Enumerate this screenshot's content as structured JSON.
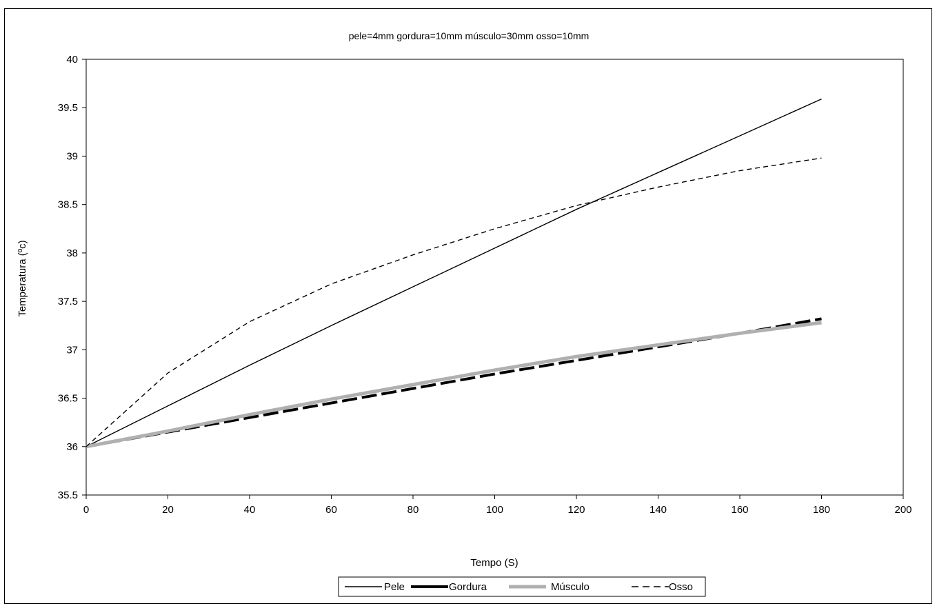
{
  "chart_data": {
    "type": "line",
    "title": "pele=4mm gordura=10mm músculo=30mm osso=10mm",
    "xlabel": "Tempo (S)",
    "ylabel": "Temperatura (ºc)",
    "xlim": [
      0,
      200
    ],
    "ylim": [
      35.5,
      40
    ],
    "x_ticks": [
      "0",
      "20",
      "40",
      "60",
      "80",
      "100",
      "120",
      "140",
      "160",
      "180",
      "200"
    ],
    "y_ticks": [
      "35.5",
      "36",
      "36.5",
      "37",
      "37.5",
      "38",
      "38.5",
      "39",
      "39.5",
      "40"
    ],
    "grid": false,
    "legend_position": "bottom",
    "x": [
      0,
      20,
      40,
      60,
      80,
      100,
      120,
      140,
      160,
      180
    ],
    "series": [
      {
        "name": "Pele",
        "color": "#000000",
        "style": "solid-thin",
        "values": [
          36.0,
          36.42,
          36.84,
          37.25,
          37.65,
          38.05,
          38.45,
          38.83,
          39.21,
          39.59
        ]
      },
      {
        "name": "Gordura",
        "color": "#000000",
        "style": "solid-thick",
        "values": [
          36.0,
          36.15,
          36.3,
          36.45,
          36.6,
          36.75,
          36.89,
          37.03,
          37.17,
          37.32
        ]
      },
      {
        "name": "Músculo",
        "color": "#b0b0b0",
        "style": "solid-thick-gray",
        "values": [
          36.0,
          36.16,
          36.33,
          36.49,
          36.64,
          36.79,
          36.93,
          37.05,
          37.17,
          37.28
        ]
      },
      {
        "name": "Osso",
        "color": "#000000",
        "style": "dashed",
        "values": [
          36.0,
          36.76,
          37.29,
          37.68,
          37.98,
          38.25,
          38.49,
          38.68,
          38.85,
          38.98
        ]
      }
    ]
  }
}
